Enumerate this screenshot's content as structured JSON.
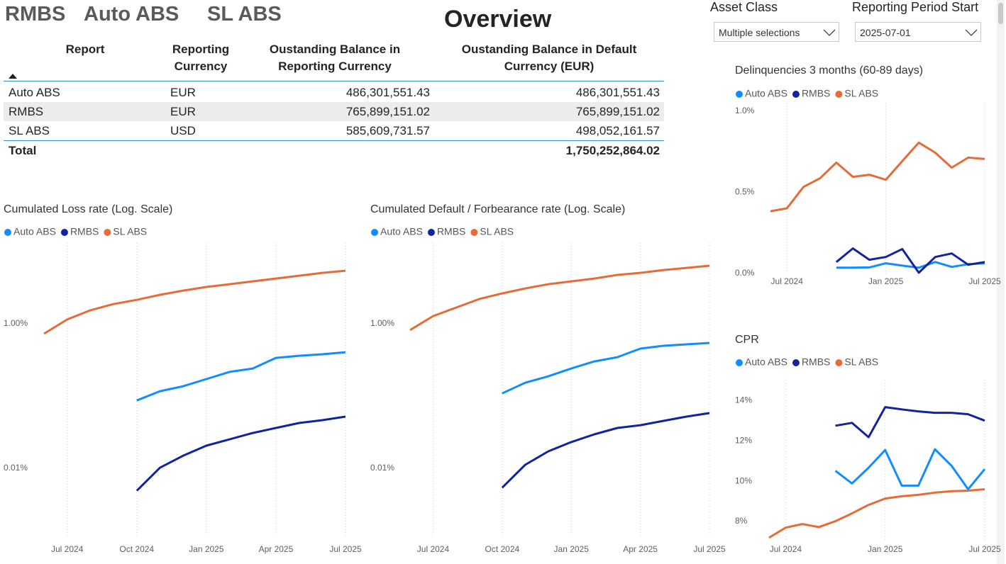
{
  "tabs": [
    "RMBS",
    "Auto ABS",
    "SL ABS"
  ],
  "title": "Overview",
  "filters": [
    {
      "label": "Asset Class",
      "value": "Multiple selections"
    },
    {
      "label": "Reporting Period Start",
      "value": "2025-07-01"
    }
  ],
  "table": {
    "columns": [
      "Report",
      "Reporting Currency",
      "Oustanding Balance in Reporting Currency",
      "Oustanding Balance in Default Currency (EUR)"
    ],
    "rows": [
      [
        "Auto ABS",
        "EUR",
        "486,301,551.43",
        "486,301,551.43"
      ],
      [
        "RMBS",
        "EUR",
        "765,899,151.02",
        "765,899,151.02"
      ],
      [
        "SL ABS",
        "USD",
        "585,609,731.57",
        "498,052,161.57"
      ]
    ],
    "total": {
      "label": "Total",
      "value": "1,750,252,864.02"
    }
  },
  "chart_data": [
    {
      "type": "line",
      "title": "Cumulated Loss rate (Log. Scale)",
      "log_scale": true,
      "grid": true,
      "x": [
        "2024-06",
        "2024-07",
        "2024-08",
        "2024-09",
        "2024-10",
        "2024-11",
        "2024-12",
        "2025-01",
        "2025-02",
        "2025-03",
        "2025-04",
        "2025-05",
        "2025-06",
        "2025-07"
      ],
      "xlim": [
        "2024-06",
        "2025-07"
      ],
      "xticks": [
        {
          "value": "2024-07",
          "label": "Jul 2024"
        },
        {
          "value": "2024-10",
          "label": "Oct 2024"
        },
        {
          "value": "2025-01",
          "label": "Jan 2025"
        },
        {
          "value": "2025-04",
          "label": "Apr 2025"
        },
        {
          "value": "2025-07",
          "label": "Jul 2025"
        }
      ],
      "ylim": [
        0.001,
        12
      ],
      "yticks": [
        {
          "value": 1,
          "label": "1.00%"
        },
        {
          "value": 0.01,
          "label": "0.01%"
        }
      ],
      "series": [
        {
          "name": "Auto ABS",
          "color": "#118DFF",
          "values": [
            null,
            null,
            null,
            null,
            0.087,
            0.117,
            0.137,
            0.172,
            0.216,
            0.241,
            0.338,
            0.362,
            0.379,
            0.405
          ]
        },
        {
          "name": "RMBS",
          "color": "#12239E",
          "values": [
            null,
            null,
            null,
            null,
            0.0049,
            0.0102,
            0.015,
            0.0206,
            0.0252,
            0.0309,
            0.0362,
            0.0424,
            0.0464,
            0.052
          ]
        },
        {
          "name": "SL ABS",
          "color": "#E66C37",
          "values": [
            0.73,
            1.15,
            1.54,
            1.88,
            2.15,
            2.52,
            2.89,
            3.24,
            3.54,
            3.87,
            4.24,
            4.64,
            5.08,
            5.43
          ]
        }
      ]
    },
    {
      "type": "line",
      "title": "Cumulated Default / Forbearance rate (Log. Scale)",
      "log_scale": true,
      "grid": true,
      "x": [
        "2024-06",
        "2024-07",
        "2024-08",
        "2024-09",
        "2024-10",
        "2024-11",
        "2024-12",
        "2025-01",
        "2025-02",
        "2025-03",
        "2025-04",
        "2025-05",
        "2025-06",
        "2025-07"
      ],
      "xlim": [
        "2024-06",
        "2025-07"
      ],
      "xticks": [
        {
          "value": "2024-07",
          "label": "Jul 2024"
        },
        {
          "value": "2024-10",
          "label": "Oct 2024"
        },
        {
          "value": "2025-01",
          "label": "Jan 2025"
        },
        {
          "value": "2025-04",
          "label": "Apr 2025"
        },
        {
          "value": "2025-07",
          "label": "Jul 2025"
        }
      ],
      "ylim": [
        0.001,
        12
      ],
      "yticks": [
        {
          "value": 1,
          "label": "1.00%"
        },
        {
          "value": 0.01,
          "label": "0.01%"
        }
      ],
      "series": [
        {
          "name": "Auto ABS",
          "color": "#118DFF",
          "values": [
            null,
            null,
            null,
            null,
            0.109,
            0.153,
            0.188,
            0.241,
            0.302,
            0.346,
            0.454,
            0.497,
            0.52,
            0.544
          ]
        },
        {
          "name": "RMBS",
          "color": "#12239E",
          "values": [
            null,
            null,
            null,
            null,
            0.0054,
            0.0112,
            0.0172,
            0.0231,
            0.0296,
            0.0362,
            0.0396,
            0.0454,
            0.052,
            0.0582
          ]
        },
        {
          "name": "SL ABS",
          "color": "#E66C37",
          "values": [
            0.82,
            1.28,
            1.68,
            2.2,
            2.64,
            3.09,
            3.54,
            3.87,
            4.24,
            4.75,
            5.08,
            5.56,
            5.95,
            6.37
          ]
        }
      ]
    },
    {
      "type": "line",
      "title": "Delinquencies 3 months (60-89 days)",
      "log_scale": false,
      "grid": true,
      "x": [
        "2024-06",
        "2024-07",
        "2024-08",
        "2024-09",
        "2024-10",
        "2024-11",
        "2024-12",
        "2025-01",
        "2025-02",
        "2025-03",
        "2025-04",
        "2025-05",
        "2025-06",
        "2025-07"
      ],
      "xlim": [
        "2024-06",
        "2025-07"
      ],
      "xticks": [
        {
          "value": "2024-07",
          "label": "Jul 2024"
        },
        {
          "value": "2025-01",
          "label": "Jan 2025"
        },
        {
          "value": "2025-07",
          "label": "Jul 2025"
        }
      ],
      "ylim": [
        -0.04,
        1.03
      ],
      "yticks": [
        {
          "value": 1.0,
          "label": "1.0%"
        },
        {
          "value": 0.5,
          "label": "0.5%"
        },
        {
          "value": 0,
          "label": "0.0%"
        }
      ],
      "series": [
        {
          "name": "Auto ABS",
          "color": "#118DFF",
          "values": [
            null,
            null,
            null,
            null,
            0.035,
            0.035,
            0.037,
            0.062,
            0.048,
            0.035,
            0.07,
            0.04,
            0.057,
            0.062
          ]
        },
        {
          "name": "RMBS",
          "color": "#12239E",
          "values": [
            null,
            null,
            null,
            null,
            0.07,
            0.154,
            0.084,
            0.101,
            0.15,
            0.004,
            0.101,
            0.123,
            0.053,
            0.07
          ]
        },
        {
          "name": "SL ABS",
          "color": "#E66C37",
          "values": [
            0.383,
            0.401,
            0.533,
            0.586,
            0.683,
            0.595,
            0.608,
            0.577,
            0.692,
            0.806,
            0.744,
            0.652,
            0.714,
            0.705
          ]
        }
      ]
    },
    {
      "type": "line",
      "title": "CPR",
      "log_scale": false,
      "grid": true,
      "x": [
        "2024-06",
        "2024-07",
        "2024-08",
        "2024-09",
        "2024-10",
        "2024-11",
        "2024-12",
        "2025-01",
        "2025-02",
        "2025-03",
        "2025-04",
        "2025-05",
        "2025-06",
        "2025-07"
      ],
      "xlim": [
        "2024-06",
        "2025-07"
      ],
      "xticks": [
        {
          "value": "2024-07",
          "label": "Jul 2024"
        },
        {
          "value": "2025-01",
          "label": "Jan 2025"
        },
        {
          "value": "2025-07",
          "label": "Jul 2025"
        }
      ],
      "ylim": [
        6.8,
        14.9
      ],
      "yticks": [
        {
          "value": 14,
          "label": "14%"
        },
        {
          "value": 12,
          "label": "12%"
        },
        {
          "value": 10,
          "label": "10%"
        },
        {
          "value": 8,
          "label": "8%"
        }
      ],
      "series": [
        {
          "name": "Auto ABS",
          "color": "#118DFF",
          "values": [
            null,
            null,
            null,
            null,
            10.52,
            9.89,
            10.67,
            11.55,
            9.78,
            9.78,
            11.59,
            10.77,
            9.6,
            10.6
          ]
        },
        {
          "name": "RMBS",
          "color": "#12239E",
          "values": [
            null,
            null,
            null,
            null,
            12.76,
            12.9,
            12.19,
            13.68,
            13.57,
            13.47,
            13.4,
            13.4,
            13.33,
            13.01
          ]
        },
        {
          "name": "SL ABS",
          "color": "#E66C37",
          "values": [
            7.19,
            7.69,
            7.87,
            7.72,
            8.01,
            8.4,
            8.82,
            9.14,
            9.25,
            9.32,
            9.43,
            9.5,
            9.53,
            9.6
          ]
        }
      ]
    }
  ]
}
